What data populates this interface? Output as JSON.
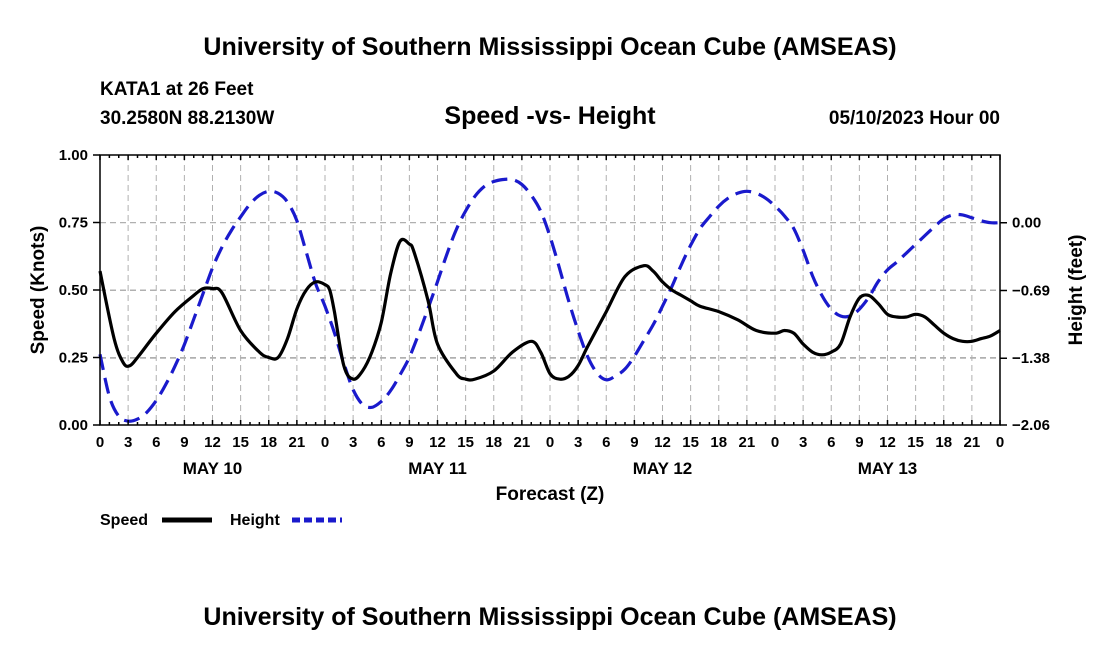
{
  "header": {
    "title": "University of Southern Mississippi Ocean Cube (AMSEAS)",
    "footer_title": "University of Southern Mississippi Ocean Cube (AMSEAS)",
    "station": "KATA1 at 26 Feet",
    "coords": "30.2580N  88.2130W",
    "chart_title": "Speed -vs- Height",
    "date": "05/10/2023 Hour 00"
  },
  "legend": {
    "speed_label": "Speed",
    "height_label": "Height"
  },
  "colors": {
    "speed": "#000000",
    "height": "#1a1acc",
    "grid": "#b0b0b0"
  },
  "chart_data": {
    "type": "line",
    "xlabel": "Forecast (Z)",
    "ylabel": "Speed (Knots)",
    "y2label": "Height (feet)",
    "x_unit": "hours since 05/10/2023 00Z",
    "xlim": [
      0,
      96
    ],
    "ylim": [
      0,
      1
    ],
    "y_ticks": [
      "0.00",
      "0.25",
      "0.50",
      "0.75",
      "1.00"
    ],
    "y2lim": [
      -2.06,
      0.69
    ],
    "y2_ticks": [
      {
        "value": -2.06,
        "label": "−2.06"
      },
      {
        "value": -1.38,
        "label": "−1.38"
      },
      {
        "value": -0.69,
        "label": "−0.69"
      },
      {
        "value": 0.0,
        "label": "0.00"
      }
    ],
    "x_tick_labels": [
      "0",
      "3",
      "6",
      "9",
      "12",
      "15",
      "18",
      "21",
      "0",
      "3",
      "6",
      "9",
      "12",
      "15",
      "18",
      "21",
      "0",
      "3",
      "6",
      "9",
      "12",
      "15",
      "18",
      "21",
      "0",
      "3",
      "6",
      "9",
      "12",
      "15",
      "18",
      "21",
      "0"
    ],
    "day_labels": [
      {
        "hour": 12,
        "label": "MAY 10"
      },
      {
        "hour": 36,
        "label": "MAY 11"
      },
      {
        "hour": 60,
        "label": "MAY 12"
      },
      {
        "hour": 84,
        "label": "MAY 13"
      }
    ],
    "series": [
      {
        "name": "Speed",
        "axis": "left",
        "style": "solid",
        "x": [
          0,
          1.5,
          2.5,
          3.2,
          4,
          6,
          8,
          10,
          11,
          12,
          13,
          15,
          17,
          18,
          19,
          20,
          21,
          22,
          23,
          24,
          24.5,
          25,
          26,
          27,
          28,
          29,
          30,
          31,
          32,
          33,
          33.5,
          35,
          36,
          38,
          39,
          40,
          42,
          44,
          46,
          47,
          48,
          49,
          50,
          51,
          52,
          54,
          56,
          58,
          59,
          60,
          61,
          62,
          63,
          64,
          66,
          68,
          70,
          72,
          73,
          74,
          75,
          76,
          77,
          78,
          79,
          80,
          81,
          82,
          83,
          84,
          85,
          86,
          87,
          88,
          89,
          90,
          91,
          92,
          93,
          94,
          95,
          96
        ],
        "values": [
          0.57,
          0.32,
          0.23,
          0.22,
          0.25,
          0.34,
          0.42,
          0.48,
          0.505,
          0.505,
          0.49,
          0.35,
          0.27,
          0.25,
          0.25,
          0.32,
          0.43,
          0.5,
          0.53,
          0.52,
          0.5,
          0.42,
          0.22,
          0.17,
          0.2,
          0.27,
          0.38,
          0.56,
          0.68,
          0.67,
          0.64,
          0.46,
          0.3,
          0.19,
          0.17,
          0.17,
          0.2,
          0.27,
          0.31,
          0.27,
          0.19,
          0.17,
          0.18,
          0.22,
          0.29,
          0.42,
          0.55,
          0.59,
          0.57,
          0.53,
          0.5,
          0.48,
          0.46,
          0.44,
          0.42,
          0.39,
          0.35,
          0.34,
          0.35,
          0.34,
          0.3,
          0.27,
          0.26,
          0.27,
          0.3,
          0.4,
          0.47,
          0.48,
          0.45,
          0.41,
          0.4,
          0.4,
          0.41,
          0.4,
          0.37,
          0.34,
          0.32,
          0.31,
          0.31,
          0.32,
          0.33,
          0.35
        ]
      },
      {
        "name": "Height",
        "axis": "right",
        "style": "dashed",
        "x": [
          0,
          1,
          2,
          3,
          4,
          5,
          6,
          7,
          8,
          9,
          10,
          11,
          12,
          13,
          14,
          15,
          16,
          17,
          18,
          19,
          20,
          21,
          22,
          23,
          24,
          25,
          26,
          27,
          28,
          29,
          30,
          31,
          32,
          33,
          34,
          35,
          36,
          37,
          38,
          39,
          40,
          41,
          42,
          43,
          44,
          45,
          46,
          47,
          48,
          49,
          50,
          51,
          52,
          53,
          54,
          55,
          56,
          57,
          58,
          59,
          60,
          61,
          62,
          63,
          64,
          65,
          66,
          67,
          68,
          69,
          70,
          71,
          72,
          73,
          74,
          75,
          76,
          77,
          78,
          79,
          80,
          81,
          82,
          83,
          84,
          85,
          86,
          87,
          88,
          89,
          90,
          91,
          92,
          93,
          94,
          95,
          96
        ],
        "values": [
          -1.34,
          -1.77,
          -1.97,
          -2.02,
          -2.0,
          -1.93,
          -1.81,
          -1.65,
          -1.46,
          -1.24,
          -0.98,
          -0.72,
          -0.46,
          -0.25,
          -0.08,
          0.06,
          0.19,
          0.28,
          0.32,
          0.3,
          0.21,
          0.02,
          -0.3,
          -0.62,
          -0.85,
          -1.12,
          -1.43,
          -1.7,
          -1.85,
          -1.88,
          -1.82,
          -1.71,
          -1.55,
          -1.37,
          -1.13,
          -0.87,
          -0.6,
          -0.32,
          -0.07,
          0.12,
          0.27,
          0.37,
          0.42,
          0.44,
          0.44,
          0.39,
          0.28,
          0.12,
          -0.14,
          -0.46,
          -0.8,
          -1.1,
          -1.36,
          -1.53,
          -1.6,
          -1.56,
          -1.49,
          -1.36,
          -1.2,
          -1.04,
          -0.85,
          -0.65,
          -0.43,
          -0.23,
          -0.06,
          0.06,
          0.17,
          0.25,
          0.3,
          0.32,
          0.3,
          0.25,
          0.17,
          0.07,
          -0.06,
          -0.28,
          -0.54,
          -0.74,
          -0.88,
          -0.95,
          -0.95,
          -0.88,
          -0.76,
          -0.6,
          -0.48,
          -0.4,
          -0.31,
          -0.22,
          -0.13,
          -0.04,
          0.04,
          0.08,
          0.08,
          0.05,
          0.02,
          0.0,
          0.0
        ]
      }
    ]
  }
}
